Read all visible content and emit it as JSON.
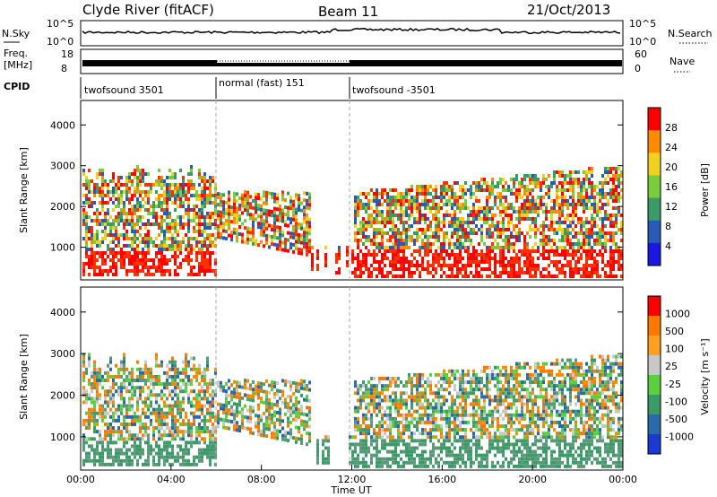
{
  "header": {
    "station": "Clyde River (fitACF)",
    "beam": "Beam 11",
    "date": "21/Oct/2013"
  },
  "strips": {
    "nsky_label": "N.Sky",
    "nsky_ticks": [
      "10^5",
      "10^0"
    ],
    "nsearch_label": "N.Search",
    "nsearch_ticks": [
      "10^5",
      "10^0"
    ],
    "freq_label_1": "Freq.",
    "freq_label_2": "[MHz]",
    "freq_ticks": [
      "18",
      "8"
    ],
    "nave_label": "Nave",
    "nave_ticks": [
      "60",
      "0"
    ],
    "cpid_label": "CPID"
  },
  "chart_data": [
    {
      "type": "heatmap",
      "title": "",
      "xlabel": "",
      "ylabel": "Slant Range [km]",
      "x_range_hours": [
        0,
        24
      ],
      "ylim": [
        200,
        4600
      ],
      "y_ticks": [
        "4000",
        "3000",
        "2000",
        "1000"
      ],
      "colorbar": {
        "label": "Power [dB]",
        "ticks": [
          "28",
          "24",
          "20",
          "16",
          "12",
          "8",
          "4"
        ],
        "colors": [
          "#1818e0",
          "#2a5ab8",
          "#3a9a68",
          "#7acc3a",
          "#f0d020",
          "#ff8c00",
          "#ff0000"
        ]
      }
    },
    {
      "type": "heatmap",
      "title": "",
      "xlabel": "Time UT",
      "ylabel": "Slant Range [km]",
      "x_range_hours": [
        0,
        24
      ],
      "x_ticks": [
        "00:00",
        "04:00",
        "08:00",
        "12:00",
        "16:00",
        "20:00",
        "00:00"
      ],
      "ylim": [
        200,
        4600
      ],
      "y_ticks": [
        "4000",
        "3000",
        "2000",
        "1000"
      ],
      "colorbar": {
        "label": "Velocity [m s⁻¹]",
        "ticks": [
          "1000",
          "500",
          "100",
          "25",
          "-25",
          "-100",
          "-500",
          "-1000"
        ],
        "colors": [
          "#1a3ad0",
          "#2a6aa8",
          "#3a9a68",
          "#5ad040",
          "#c8c8c8",
          "#ffa020",
          "#ff7800",
          "#ff0000"
        ]
      }
    }
  ],
  "cpid_segments": [
    {
      "label": "twofsound 3501",
      "start": 0,
      "end": 6
    },
    {
      "label": "normal (fast) 151",
      "start": 6,
      "end": 12
    },
    {
      "label": "twofsound -3501",
      "start": 12,
      "end": 24
    }
  ]
}
